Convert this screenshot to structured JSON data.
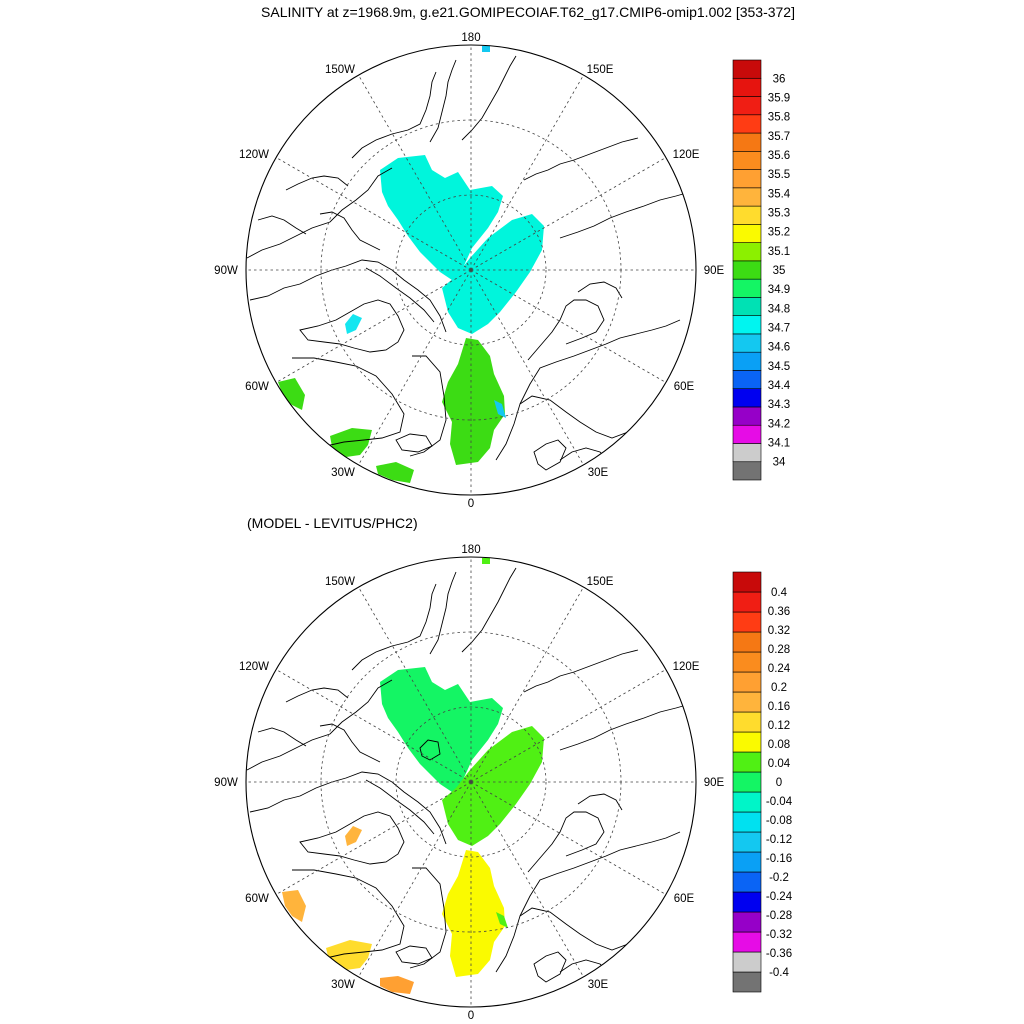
{
  "title": "SALINITY at z=1968.9m, g.e21.GOMIPECOIAF.T62_g17.CMIP6-omip1.002 [353-372]",
  "subtitle": "(MODEL - LEVITUS/PHC2)",
  "map_labels": {
    "l180": "180",
    "l150W": "150W",
    "l150E": "150E",
    "l120W": "120W",
    "l120E": "120E",
    "l90W": "90W",
    "l90E": "90E",
    "l60W": "60W",
    "l60E": "60E",
    "l30W": "30W",
    "l30E": "30E",
    "l0": "0"
  },
  "colorbar_top": {
    "colors": [
      "#737373",
      "#cccccc",
      "#e60ce6",
      "#9600c8",
      "#0000f0",
      "#0a64f5",
      "#0aa0f5",
      "#14c8f0",
      "#00f5f0",
      "#00e1b4",
      "#14f564",
      "#3cdc14",
      "#8cf000",
      "#fafa00",
      "#ffdc2d",
      "#ffb43c",
      "#ffa032",
      "#fa8c1e",
      "#f57814",
      "#ff3c14",
      "#f01e14",
      "#e6140f",
      "#c80a0a"
    ],
    "labels": [
      "34",
      "34.1",
      "34.2",
      "34.3",
      "34.4",
      "34.5",
      "34.6",
      "34.7",
      "34.8",
      "34.9",
      "35",
      "35.1",
      "35.2",
      "35.3",
      "35.4",
      "35.5",
      "35.6",
      "35.7",
      "35.8",
      "35.9",
      "36"
    ]
  },
  "colorbar_bottom": {
    "colors": [
      "#737373",
      "#cccccc",
      "#e60ce6",
      "#9600c8",
      "#0000f0",
      "#0a64f5",
      "#0aa0f5",
      "#14c8f0",
      "#00e1f0",
      "#00f5c8",
      "#14f564",
      "#50f014",
      "#fafa00",
      "#ffdc2d",
      "#ffb43c",
      "#ffa032",
      "#fa8c1e",
      "#f57814",
      "#ff3c14",
      "#f01e14",
      "#c80a0a"
    ],
    "labels": [
      "-0.4",
      "-0.36",
      "-0.32",
      "-0.28",
      "-0.24",
      "-0.2",
      "-0.16",
      "-0.12",
      "-0.08",
      "-0.04",
      "0",
      "0.04",
      "0.08",
      "0.12",
      "0.16",
      "0.2",
      "0.24",
      "0.28",
      "0.32",
      "0.36",
      "0.4"
    ]
  },
  "fills": {
    "top_canada": "#00f5dc",
    "top_eurasia": "#00f5dc",
    "top_nordic": "#3cdc14",
    "top_baffin": "#3cdc14",
    "top_labrador": "#3cdc14",
    "top_iceland_basin": "#3cdc14",
    "top_arch": "#14e6f0",
    "top_blue": "#14c8f0",
    "bot_canada": "#14f564",
    "bot_eurasia": "#50f014",
    "bot_nordic": "#fafa00",
    "bot_baffin": "#ffb43c",
    "bot_labrador": "#ffdc2d",
    "bot_iceland_basin": "#ffa032",
    "bot_arch": "#ffb43c",
    "bot_green": "#50f014"
  }
}
